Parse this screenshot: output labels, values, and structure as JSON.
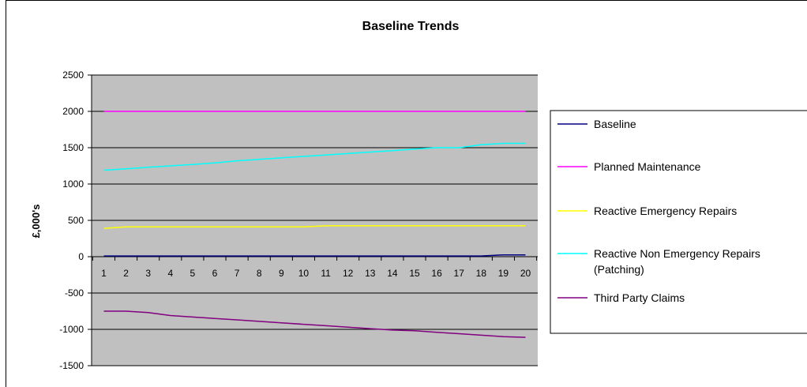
{
  "chart_data": {
    "type": "line",
    "title": "Baseline Trends",
    "xlabel": "",
    "ylabel": "£,000's",
    "ylim": [
      -1500,
      2500
    ],
    "yticks": [
      2500,
      2000,
      1500,
      1000,
      500,
      0,
      -500,
      -1000,
      -1500
    ],
    "x": [
      1,
      2,
      3,
      4,
      5,
      6,
      7,
      8,
      9,
      10,
      11,
      12,
      13,
      14,
      15,
      16,
      17,
      18,
      19,
      20
    ],
    "grid": true,
    "legend_position": "right",
    "series": [
      {
        "name": "Baseline",
        "color": "#000080",
        "values": [
          10,
          10,
          10,
          10,
          10,
          10,
          10,
          10,
          10,
          10,
          10,
          10,
          10,
          10,
          10,
          10,
          10,
          10,
          25,
          25
        ]
      },
      {
        "name": "Planned Maintenance",
        "color": "#ff00ff",
        "values": [
          2000,
          2000,
          2000,
          2000,
          2000,
          2000,
          2000,
          2000,
          2000,
          2000,
          2000,
          2000,
          2000,
          2000,
          2000,
          2000,
          2000,
          2000,
          2000,
          2000
        ]
      },
      {
        "name": "Reactive Emergency Repairs",
        "color": "#ffff00",
        "values": [
          390,
          410,
          410,
          410,
          410,
          410,
          410,
          410,
          410,
          410,
          425,
          425,
          425,
          425,
          425,
          425,
          425,
          425,
          425,
          425
        ]
      },
      {
        "name": "Reactive Non Emergency Repairs (Patching)",
        "color": "#00ffff",
        "values": [
          1190,
          1210,
          1230,
          1250,
          1270,
          1290,
          1320,
          1340,
          1360,
          1380,
          1400,
          1420,
          1440,
          1460,
          1480,
          1500,
          1500,
          1540,
          1560,
          1560
        ]
      },
      {
        "name": "Third Party Claims",
        "color": "#800080",
        "values": [
          -750,
          -750,
          -770,
          -810,
          -830,
          -850,
          -870,
          -890,
          -910,
          -930,
          -950,
          -970,
          -990,
          -1010,
          -1020,
          -1040,
          -1060,
          -1080,
          -1100,
          -1110
        ]
      }
    ]
  }
}
